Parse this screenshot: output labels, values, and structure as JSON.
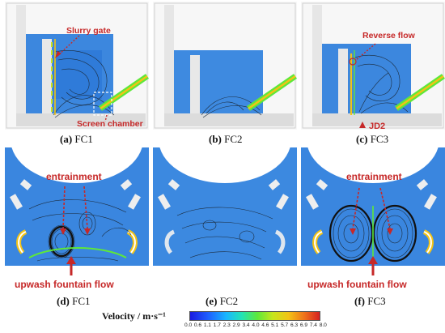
{
  "panels": {
    "a": {
      "letter": "(a)",
      "name": "FC1"
    },
    "b": {
      "letter": "(b)",
      "name": "FC2"
    },
    "c": {
      "letter": "(c)",
      "name": "FC3"
    },
    "d": {
      "letter": "(d)",
      "name": "FC1"
    },
    "e": {
      "letter": "(e)",
      "name": "FC2"
    },
    "f": {
      "letter": "(f)",
      "name": "FC3"
    }
  },
  "annotations": {
    "slurry_gate": "Slurry gate",
    "screen_chamber": "Screen chamber",
    "reverse_flow": "Reverse flow",
    "jd2": "JD2",
    "entrainment_d": "entrainment",
    "upwash_d": "upwash fountain flow",
    "entrainment_f": "entrainment",
    "upwash_f": "upwash fountain flow"
  },
  "colorbar": {
    "title": "Velocity / m·s⁻¹",
    "ticks": [
      "0.0",
      "0.6",
      "1.1",
      "1.7",
      "2.3",
      "2.9",
      "3.4",
      "4.0",
      "4.6",
      "5.1",
      "5.7",
      "6.3",
      "6.9",
      "7.4",
      "8.0"
    ]
  },
  "colors": {
    "annotation": "#c62828",
    "field_blue": "#3a86df",
    "frame": "#c9c9c9"
  }
}
